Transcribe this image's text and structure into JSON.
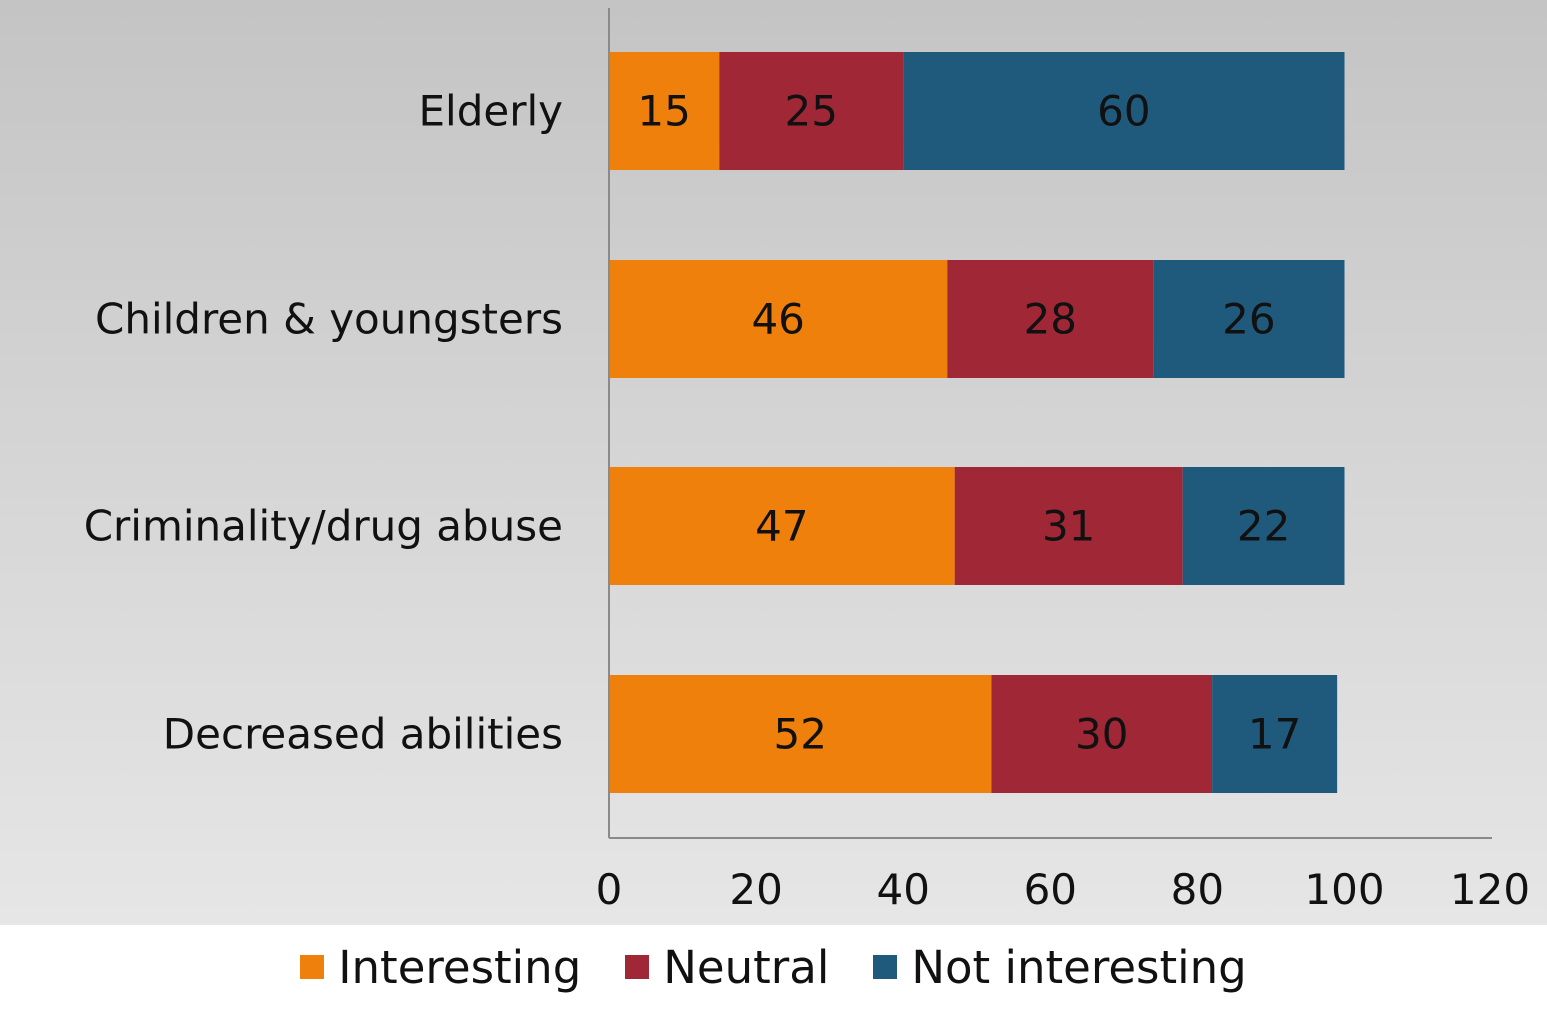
{
  "chart_data": {
    "type": "bar",
    "orientation": "horizontal",
    "stacked": true,
    "categories": [
      "Elderly",
      "Children & youngsters",
      "Criminality/drug abuse",
      "Decreased abilities"
    ],
    "series": [
      {
        "name": "Interesting",
        "color": "#ef800c",
        "values": [
          15,
          46,
          47,
          52
        ]
      },
      {
        "name": "Neutral",
        "color": "#a02736",
        "values": [
          25,
          28,
          31,
          30
        ]
      },
      {
        "name": "Not interesting",
        "color": "#1f5a7c",
        "values": [
          60,
          26,
          22,
          17
        ]
      }
    ],
    "xlim": [
      0,
      120
    ],
    "xticks": [
      "0",
      "20",
      "40",
      "60",
      "80",
      "100",
      "120"
    ],
    "title": "",
    "xlabel": "",
    "ylabel": "",
    "grid": false,
    "legend_position": "bottom",
    "data_labels": true
  }
}
